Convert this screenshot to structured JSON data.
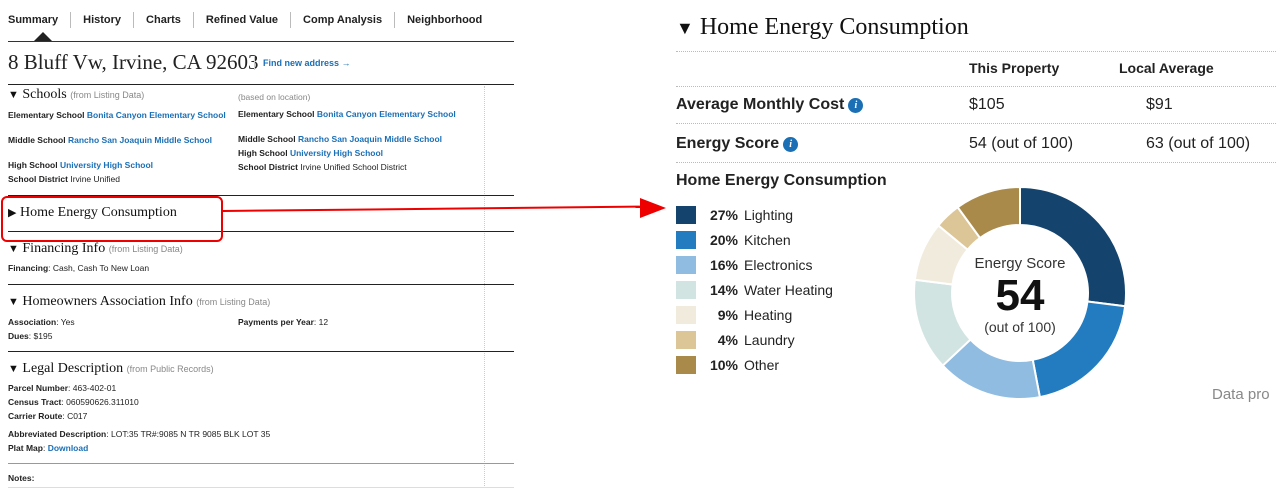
{
  "tabs": [
    "Summary",
    "History",
    "Charts",
    "Refined Value",
    "Comp Analysis",
    "Neighborhood"
  ],
  "address": "8 Bluff Vw, Irvine, CA 92603",
  "find_new_address": "Find new address →",
  "schools": {
    "title": "Schools",
    "note_listing": "(from Listing Data)",
    "note_location": "(based on location)",
    "listing": {
      "elementary_label": "Elementary School",
      "elementary_value": "Bonita Canyon Elementary School",
      "middle_label": "Middle School",
      "middle_value": "Rancho San Joaquin Middle School",
      "high_label": "High School",
      "high_value": "University High School",
      "district_label": "School District",
      "district_value": "Irvine Unified"
    },
    "location": {
      "elementary_label": "Elementary School",
      "elementary_value": "Bonita Canyon Elementary School",
      "middle_label": "Middle School",
      "middle_value": "Rancho San Joaquin Middle School",
      "high_label": "High School",
      "high_value": "University High School",
      "district_label": "School District",
      "district_value": "Irvine Unified School District"
    }
  },
  "home_energy_collapsed": "Home Energy Consumption",
  "financing": {
    "title": "Financing Info",
    "note": "(from Listing Data)",
    "label": "Financing",
    "value": "Cash, Cash To New Loan"
  },
  "hoa": {
    "title": "Homeowners Association Info",
    "note": "(from Listing Data)",
    "association_label": "Association",
    "association_value": "Yes",
    "payments_label": "Payments per Year",
    "payments_value": "12",
    "dues_label": "Dues",
    "dues_value": "$195"
  },
  "legal": {
    "title": "Legal Description",
    "note": "(from Public Records)",
    "parcel_label": "Parcel Number",
    "parcel_value": "463-402-01",
    "census_label": "Census Tract",
    "census_value": "060590626.311010",
    "carrier_label": "Carrier Route",
    "carrier_value": "C017",
    "abbrev_label": "Abbreviated Description",
    "abbrev_value": "LOT:35 TR#:9085 N TR 9085 BLK LOT 35",
    "plat_label": "Plat Map",
    "plat_value": "Download"
  },
  "notes_label": "Notes:",
  "energy": {
    "title": "Home Energy Consumption",
    "col_this": "This Property",
    "col_local": "Local Average",
    "monthly_label": "Average Monthly Cost",
    "monthly_this": "$105",
    "monthly_local": "$91",
    "score_label": "Energy Score",
    "score_this": "54 (out of 100)",
    "score_local": "63 (out of 100)",
    "consumption_heading": "Home Energy Consumption",
    "donut_label": "Energy Score",
    "donut_value": "54",
    "donut_sub": "(out of 100)",
    "data_pro": "Data pro",
    "breakdown": [
      {
        "pct": "27%",
        "label": "Lighting",
        "value": 27,
        "color": "#14446e"
      },
      {
        "pct": "20%",
        "label": "Kitchen",
        "value": 20,
        "color": "#237bc0"
      },
      {
        "pct": "16%",
        "label": "Electronics",
        "value": 16,
        "color": "#8fbce0"
      },
      {
        "pct": "14%",
        "label": "Water Heating",
        "value": 14,
        "color": "#d2e4e1"
      },
      {
        "pct": "9%",
        "label": "Heating",
        "value": 9,
        "color": "#f1ebdd"
      },
      {
        "pct": "4%",
        "label": "Laundry",
        "value": 4,
        "color": "#dcc596"
      },
      {
        "pct": "10%",
        "label": "Other",
        "value": 10,
        "color": "#a98a4b"
      }
    ]
  }
}
